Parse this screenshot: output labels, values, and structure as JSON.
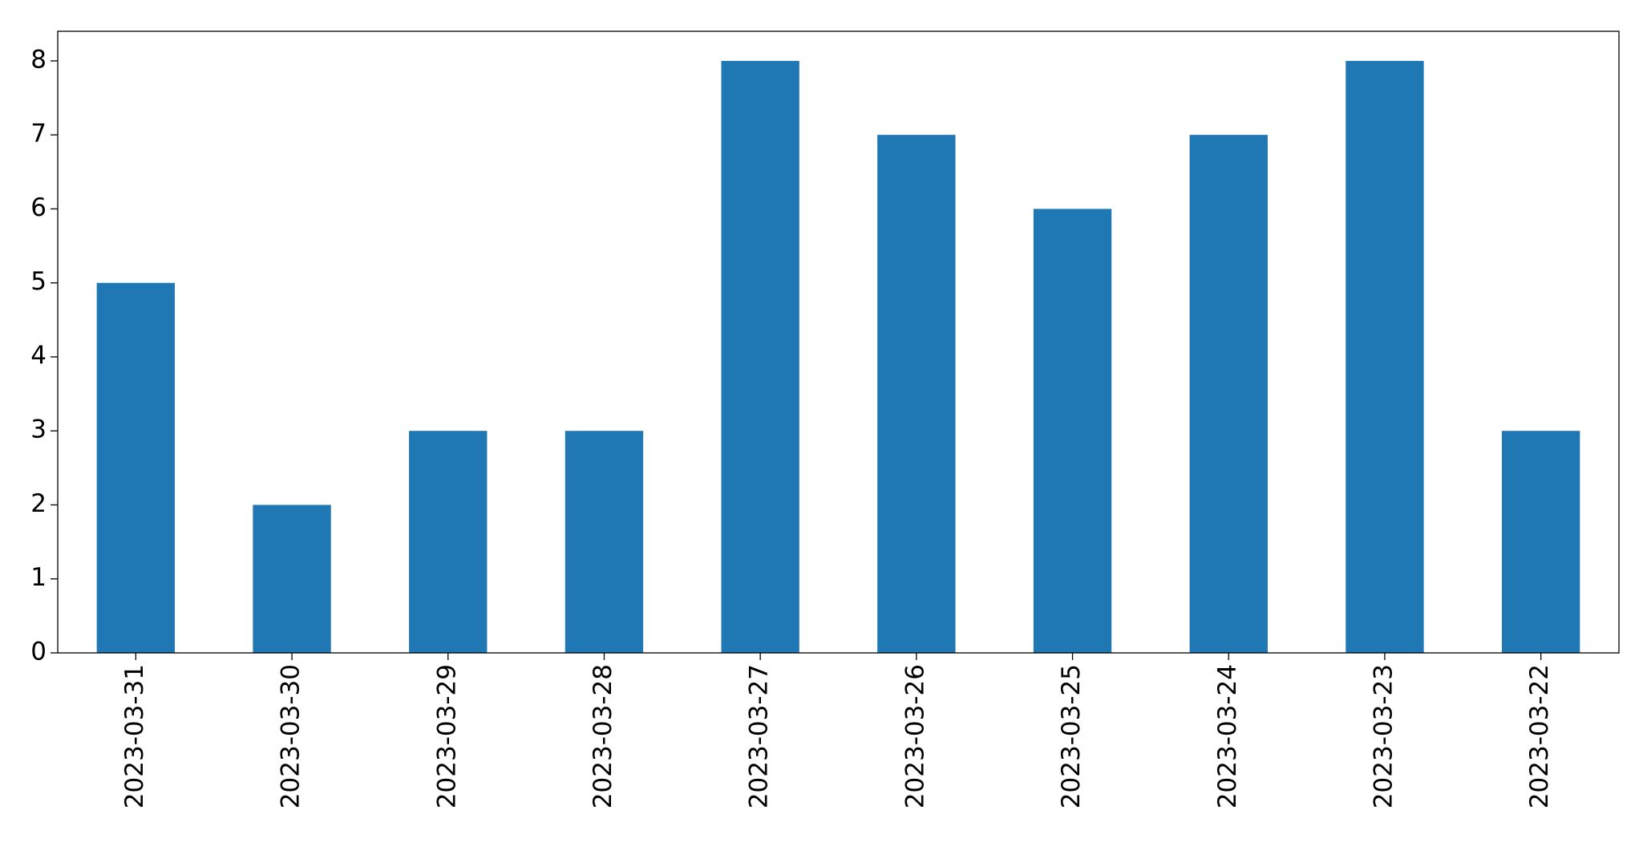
{
  "chart_data": {
    "type": "bar",
    "categories": [
      "2023-03-31",
      "2023-03-30",
      "2023-03-29",
      "2023-03-28",
      "2023-03-27",
      "2023-03-26",
      "2023-03-25",
      "2023-03-24",
      "2023-03-23",
      "2023-03-22"
    ],
    "values": [
      5,
      2,
      3,
      3,
      8,
      7,
      6,
      7,
      8,
      3
    ],
    "color": "#1f77b4",
    "ylim": [
      0,
      8.4
    ],
    "yticks": [
      0,
      1,
      2,
      3,
      4,
      5,
      6,
      7,
      8
    ],
    "grid": false
  }
}
